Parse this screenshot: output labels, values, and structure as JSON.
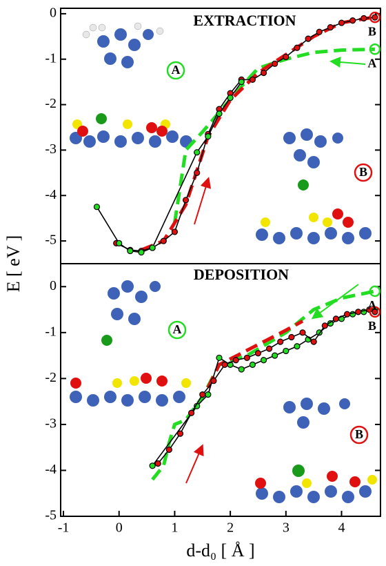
{
  "chart_data": [
    {
      "type": "line",
      "title": "EXTRACTION",
      "ylabel": "E [ eV ]",
      "xlim": [
        -1.05,
        4.7
      ],
      "ylim": [
        -5.5,
        0.12
      ],
      "yticks": [
        0,
        -1,
        -2,
        -3,
        -4,
        -5
      ],
      "inset_labels": [
        "A",
        "B"
      ],
      "series": [
        {
          "name": "B",
          "color": "#e01010",
          "style": "markers",
          "end_marker": true,
          "x": [
            -0.05,
            0.2,
            0.4,
            0.6,
            0.8,
            1.0,
            1.2,
            1.4,
            1.6,
            1.8,
            2.0,
            2.2,
            2.4,
            2.6,
            2.8,
            3.0,
            3.2,
            3.4,
            3.6,
            3.8,
            4.0,
            4.2,
            4.4,
            4.6
          ],
          "values": [
            -5.05,
            -5.2,
            -5.22,
            -5.15,
            -5.0,
            -4.8,
            -4.1,
            -3.5,
            -2.65,
            -2.1,
            -1.75,
            -1.45,
            -1.45,
            -1.3,
            -1.1,
            -0.95,
            -0.75,
            -0.55,
            -0.4,
            -0.3,
            -0.2,
            -0.15,
            -0.1,
            -0.08
          ]
        },
        {
          "name": "A",
          "color": "#22dd22",
          "style": "markers",
          "x": [
            -0.4,
            0.0,
            0.2,
            0.4,
            0.6,
            1.4,
            1.6,
            1.8,
            2.0,
            2.2
          ],
          "values": [
            -4.25,
            -5.05,
            -5.22,
            -5.25,
            -5.15,
            -3.05,
            -2.7,
            -2.2,
            -1.85,
            -1.5
          ]
        },
        {
          "color": "#22dd22",
          "style": "dashed",
          "end_marker": true,
          "x": [
            1.0,
            1.2,
            1.5,
            2.2,
            2.5,
            3.0,
            3.5,
            4.0,
            4.6
          ],
          "values": [
            -4.6,
            -3.0,
            -2.6,
            -1.6,
            -1.2,
            -1.0,
            -0.85,
            -0.8,
            -0.78
          ]
        },
        {
          "color": "#e01010",
          "style": "dashed",
          "x": [
            0.4,
            0.8,
            1.2,
            1.6,
            2.0,
            2.5,
            3.0,
            3.5,
            4.0,
            4.6
          ],
          "values": [
            -5.2,
            -5.0,
            -4.2,
            -2.7,
            -1.9,
            -1.3,
            -0.9,
            -0.5,
            -0.2,
            -0.07
          ]
        }
      ]
    },
    {
      "type": "line",
      "title": "DEPOSITION",
      "xlabel": "d-d₀ [ Å ]",
      "xlim": [
        -1.05,
        4.7
      ],
      "ylim": [
        -5,
        0.5
      ],
      "yticks": [
        0,
        -1,
        -2,
        -3,
        -4,
        -5
      ],
      "xticks": [
        -1,
        0,
        1,
        2,
        3,
        4
      ],
      "inset_labels": [
        "A",
        "B"
      ],
      "series": [
        {
          "name": "A",
          "color": "#22dd22",
          "style": "markers",
          "x": [
            0.6,
            1.4,
            1.6,
            1.8,
            2.0,
            2.2,
            2.4,
            2.6,
            2.8,
            3.0,
            3.2,
            3.4,
            3.6,
            3.8,
            4.0,
            4.2,
            4.4,
            4.6
          ],
          "values": [
            -3.9,
            -2.6,
            -2.35,
            -1.55,
            -1.7,
            -1.8,
            -1.7,
            -1.6,
            -1.5,
            -1.4,
            -1.3,
            -1.15,
            -1.0,
            -0.8,
            -0.7,
            -0.6,
            -0.55,
            -0.5
          ]
        },
        {
          "name": "B",
          "color": "#e01010",
          "style": "markers",
          "end_marker": true,
          "x": [
            0.7,
            0.9,
            1.1,
            1.3,
            1.5,
            1.7,
            1.9,
            2.1,
            2.3,
            2.5,
            2.7,
            2.9,
            3.1,
            3.3,
            3.5,
            3.7,
            3.9,
            4.1,
            4.3,
            4.5,
            4.6
          ],
          "values": [
            -3.85,
            -3.55,
            -3.2,
            -2.75,
            -2.35,
            -2.05,
            -1.7,
            -1.6,
            -1.55,
            -1.45,
            -1.35,
            -1.2,
            -1.1,
            -1.0,
            -1.2,
            -0.85,
            -0.7,
            -0.6,
            -0.55,
            -0.5,
            -0.55
          ]
        },
        {
          "color": "#22dd22",
          "style": "dashed",
          "end_marker": true,
          "x": [
            0.6,
            0.8,
            0.9,
            1.0,
            1.2,
            1.5,
            1.8,
            2.3,
            3.0,
            3.5,
            4.0,
            4.6
          ],
          "values": [
            -4.2,
            -3.9,
            -3.4,
            -3.0,
            -2.9,
            -2.4,
            -1.7,
            -1.5,
            -1.0,
            -0.5,
            -0.25,
            -0.1
          ]
        },
        {
          "color": "#e01010",
          "style": "dashed",
          "x": [
            1.6,
            1.8,
            2.2,
            2.6,
            3.0,
            3.3
          ],
          "values": [
            -2.2,
            -1.7,
            -1.45,
            -1.2,
            -0.95,
            -0.75
          ]
        }
      ]
    }
  ]
}
